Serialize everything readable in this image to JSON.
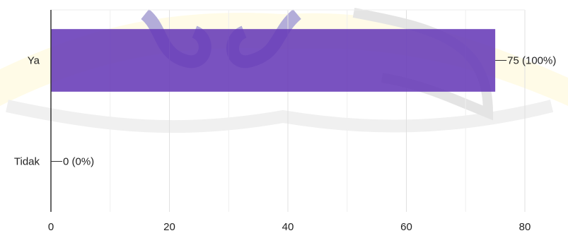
{
  "chart_data": {
    "type": "bar",
    "orientation": "horizontal",
    "categories": [
      "Ya",
      "Tidak"
    ],
    "values": [
      75,
      0
    ],
    "data_labels": [
      "75 (100%)",
      "0 (0%)"
    ],
    "xlim": [
      0,
      80
    ],
    "x_ticks": [
      0,
      20,
      40,
      60,
      80
    ],
    "grid": true,
    "legend": "none",
    "colors": {
      "bar": "#673ab7",
      "grid": "#e0e0e0",
      "axis": "#333333",
      "text": "#222222"
    }
  }
}
